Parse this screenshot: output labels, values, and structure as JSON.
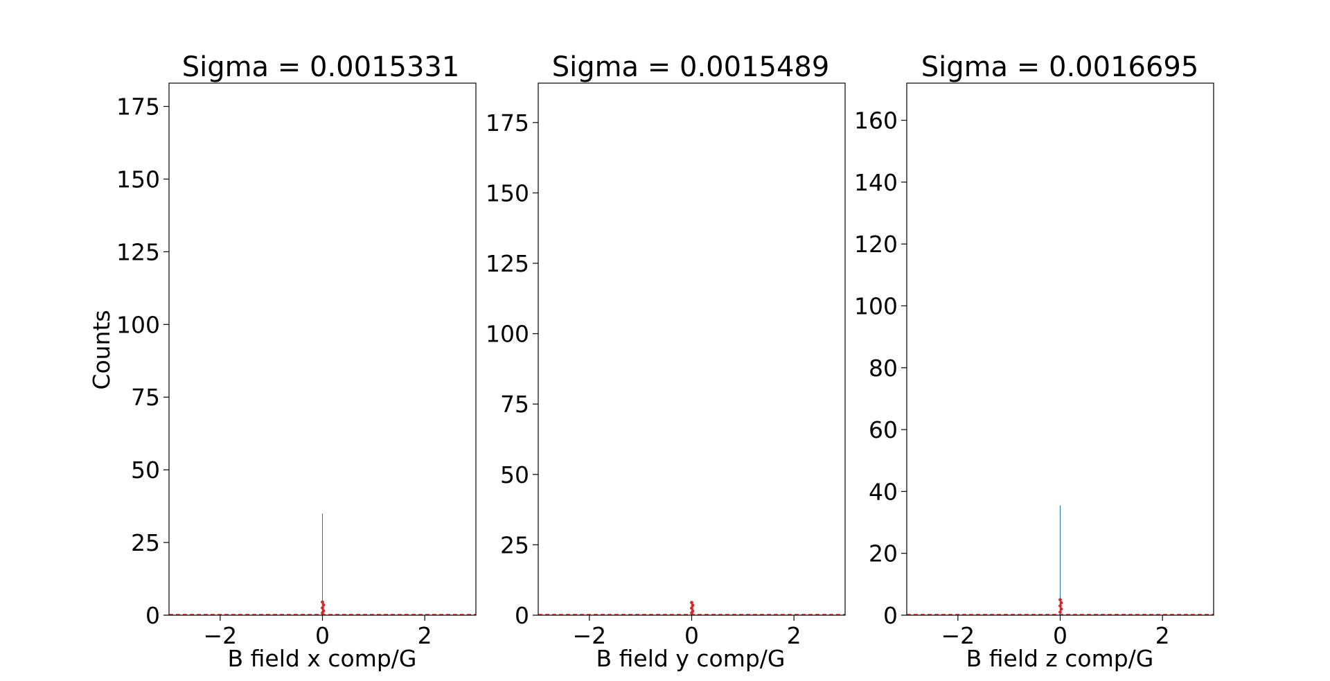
{
  "figure": {
    "background": "#ffffff",
    "hist_color": "#1f77b4",
    "fit_color": "#d62728"
  },
  "chart_data": [
    {
      "type": "bar",
      "title": "Sigma = 0.0015331",
      "xlabel": "B field x comp/G",
      "ylabel": "Counts",
      "xlim": [
        -3,
        3
      ],
      "ylim": [
        0,
        183
      ],
      "xticks": [
        -2,
        0,
        2
      ],
      "xtick_labels": [
        "−2",
        "0",
        "2"
      ],
      "yticks": [
        0,
        25,
        50,
        75,
        100,
        125,
        150,
        175
      ],
      "yticks_labels": [
        "0",
        "25",
        "50",
        "75",
        "100",
        "125",
        "150",
        "175"
      ],
      "grid": false,
      "histogram": {
        "peak_x": 0,
        "peak_count": 35
      },
      "fit_points": [
        {
          "x": 0,
          "y": 4.5
        },
        {
          "x": 0,
          "y": 3.5
        },
        {
          "x": 0,
          "y": 2.5
        },
        {
          "x": 0,
          "y": 1.5
        },
        {
          "x": 0,
          "y": 0.8
        }
      ]
    },
    {
      "type": "bar",
      "title": "Sigma = 0.0015489",
      "xlabel": "B field y comp/G",
      "ylabel": "",
      "xlim": [
        -3,
        3
      ],
      "ylim": [
        0,
        189
      ],
      "xticks": [
        -2,
        0,
        2
      ],
      "xtick_labels": [
        "−2",
        "0",
        "2"
      ],
      "yticks": [
        0,
        25,
        50,
        75,
        100,
        125,
        150,
        175
      ],
      "yticks_labels": [
        "0",
        "25",
        "50",
        "75",
        "100",
        "125",
        "150",
        "175"
      ],
      "grid": false,
      "histogram": {
        "peak_x": 0,
        "peak_count": 4
      },
      "fit_points": [
        {
          "x": 0,
          "y": 4.5
        },
        {
          "x": 0,
          "y": 3.5
        },
        {
          "x": 0,
          "y": 2.5
        },
        {
          "x": 0,
          "y": 1.5
        },
        {
          "x": 0,
          "y": 0.8
        }
      ]
    },
    {
      "type": "bar",
      "title": "Sigma = 0.0016695",
      "xlabel": "B field z comp/G",
      "ylabel": "",
      "xlim": [
        -3,
        3
      ],
      "ylim": [
        0,
        172
      ],
      "xticks": [
        -2,
        0,
        2
      ],
      "xtick_labels": [
        "−2",
        "0",
        "2"
      ],
      "yticks": [
        0,
        20,
        40,
        60,
        80,
        100,
        120,
        140,
        160
      ],
      "yticks_labels": [
        "0",
        "20",
        "40",
        "60",
        "80",
        "100",
        "120",
        "140",
        "160"
      ],
      "grid": false,
      "histogram": {
        "peak_x": 0,
        "peak_count": 35.5
      },
      "fit_points": [
        {
          "x": 0,
          "y": 5
        },
        {
          "x": 0,
          "y": 4
        },
        {
          "x": 0,
          "y": 3
        },
        {
          "x": 0,
          "y": 2
        },
        {
          "x": 0,
          "y": 1
        }
      ]
    }
  ]
}
